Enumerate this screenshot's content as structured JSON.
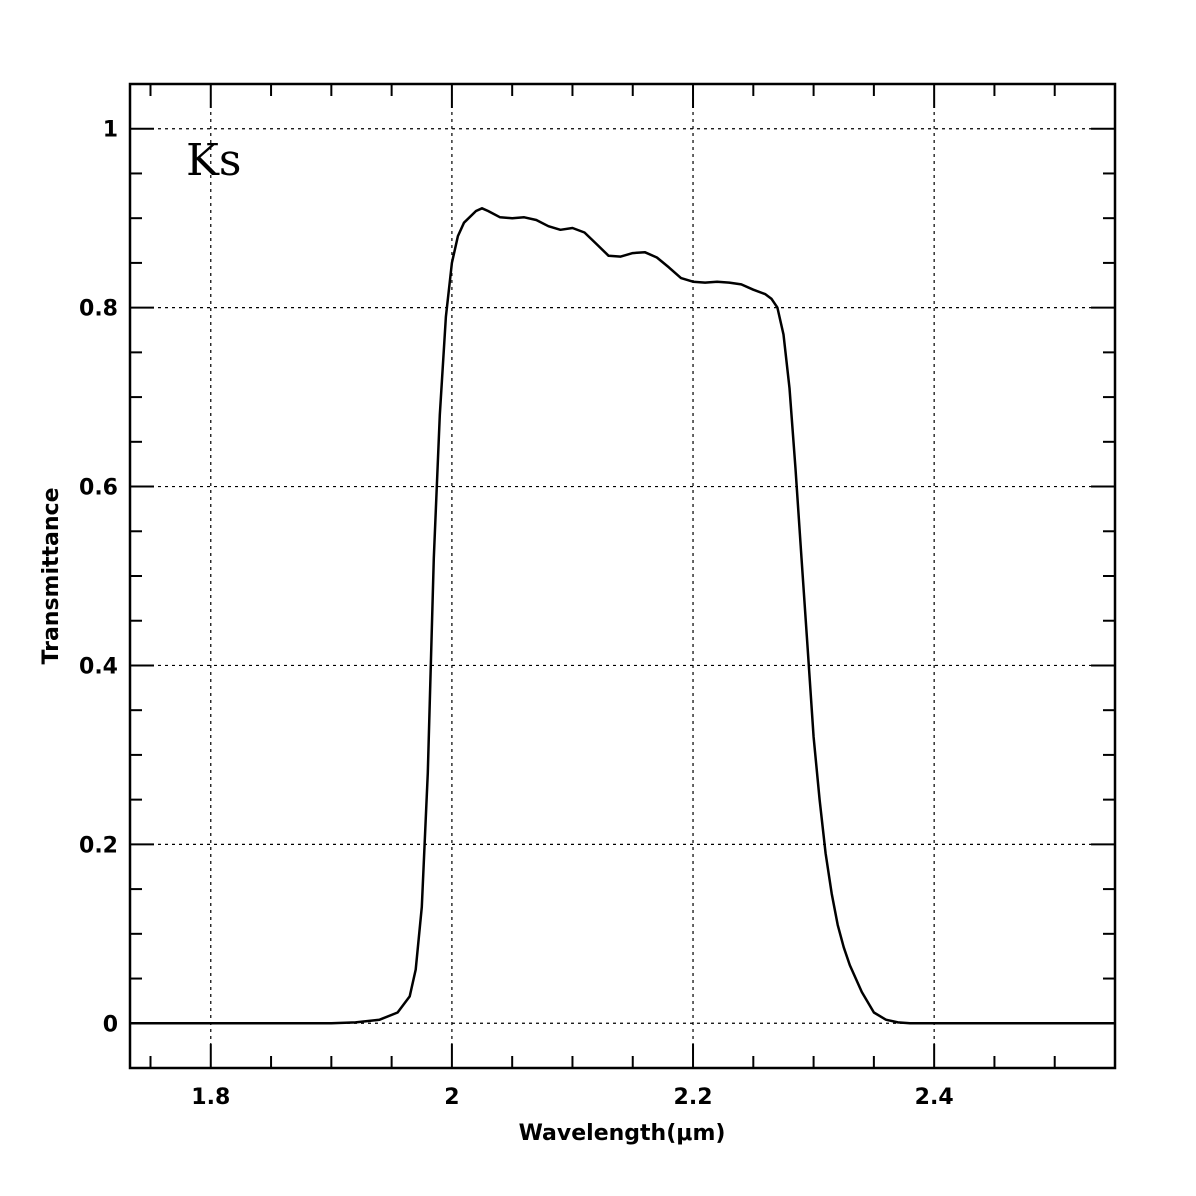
{
  "chart_data": {
    "type": "line",
    "title": "",
    "annotation": "Ks",
    "xlabel": "Wavelength(μm)",
    "ylabel": "Transmittance",
    "xlim": [
      1.733,
      2.55
    ],
    "ylim": [
      -0.05,
      1.05
    ],
    "x_ticks": [
      {
        "value": 1.8,
        "label": "1.8"
      },
      {
        "value": 2.0,
        "label": "2"
      },
      {
        "value": 2.2,
        "label": "2.2"
      },
      {
        "value": 2.4,
        "label": "2.4"
      }
    ],
    "x_minor_step": 0.05,
    "y_ticks": [
      {
        "value": 0,
        "label": "0"
      },
      {
        "value": 0.2,
        "label": "0.2"
      },
      {
        "value": 0.4,
        "label": "0.4"
      },
      {
        "value": 0.6,
        "label": "0.6"
      },
      {
        "value": 0.8,
        "label": "0.8"
      },
      {
        "value": 1.0,
        "label": "1"
      }
    ],
    "y_minor_step": 0.05,
    "grid": true,
    "series": [
      {
        "x": [
          1.733,
          1.9,
          1.92,
          1.94,
          1.955,
          1.965,
          1.97,
          1.975,
          1.98,
          1.985,
          1.99,
          1.995,
          2.0,
          2.005,
          2.01,
          2.02,
          2.025,
          2.03,
          2.04,
          2.05,
          2.06,
          2.07,
          2.08,
          2.09,
          2.1,
          2.11,
          2.12,
          2.13,
          2.14,
          2.15,
          2.16,
          2.17,
          2.18,
          2.19,
          2.2,
          2.21,
          2.22,
          2.23,
          2.24,
          2.25,
          2.26,
          2.265,
          2.27,
          2.275,
          2.28,
          2.285,
          2.29,
          2.295,
          2.3,
          2.305,
          2.31,
          2.315,
          2.32,
          2.325,
          2.33,
          2.34,
          2.35,
          2.36,
          2.37,
          2.38,
          2.4,
          2.55
        ],
        "y": [
          0.0,
          0.0,
          0.001,
          0.004,
          0.012,
          0.03,
          0.06,
          0.13,
          0.28,
          0.52,
          0.68,
          0.79,
          0.85,
          0.88,
          0.895,
          0.908,
          0.911,
          0.908,
          0.901,
          0.9,
          0.901,
          0.898,
          0.891,
          0.887,
          0.889,
          0.884,
          0.871,
          0.858,
          0.857,
          0.861,
          0.862,
          0.856,
          0.845,
          0.833,
          0.829,
          0.828,
          0.829,
          0.828,
          0.826,
          0.82,
          0.815,
          0.81,
          0.8,
          0.77,
          0.71,
          0.62,
          0.52,
          0.42,
          0.32,
          0.25,
          0.19,
          0.145,
          0.11,
          0.085,
          0.065,
          0.035,
          0.012,
          0.004,
          0.001,
          0.0,
          0.0,
          0.0
        ]
      }
    ]
  }
}
